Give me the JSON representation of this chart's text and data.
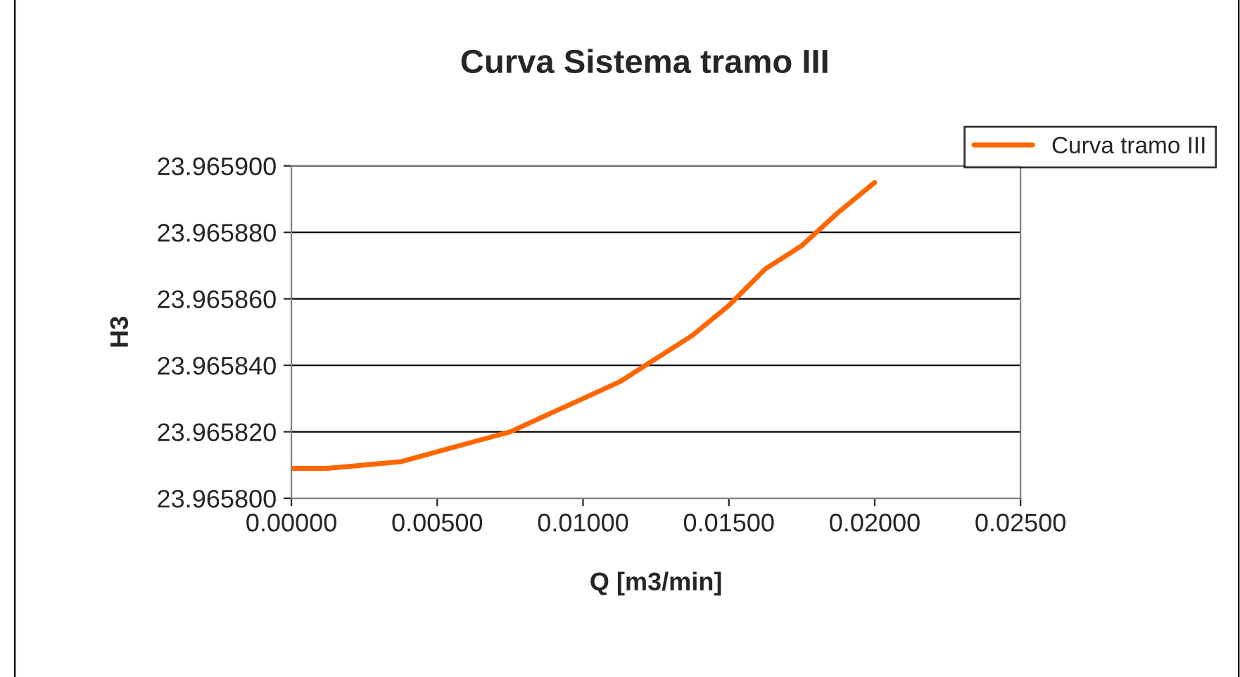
{
  "chart_data": {
    "type": "line",
    "title": "Curva Sistema tramo III",
    "xlabel": "Q [m3/min]",
    "ylabel": "H3",
    "x": [
      0,
      0.00125,
      0.0025,
      0.00375,
      0.005,
      0.00625,
      0.0075,
      0.00875,
      0.01,
      0.01125,
      0.0125,
      0.01375,
      0.015,
      0.01625,
      0.0175,
      0.01875,
      0.02
    ],
    "series": [
      {
        "name": "Curva tramo III",
        "color": "#ff6600",
        "values": [
          23.965809,
          23.965809,
          23.96581,
          23.965811,
          23.965814,
          23.965817,
          23.96582,
          23.965825,
          23.96583,
          23.965835,
          23.965842,
          23.965849,
          23.965858,
          23.965869,
          23.965876,
          23.965886,
          23.965895
        ]
      }
    ],
    "xlim": [
      0,
      0.025
    ],
    "xticks": [
      {
        "value": 0,
        "label": "0.00000"
      },
      {
        "value": 0.005,
        "label": "0.00500"
      },
      {
        "value": 0.01,
        "label": "0.01000"
      },
      {
        "value": 0.015,
        "label": "0.01500"
      },
      {
        "value": 0.02,
        "label": "0.02000"
      },
      {
        "value": 0.025,
        "label": "0.02500"
      }
    ],
    "ylim": [
      23.9658,
      23.9659
    ],
    "yticks": [
      {
        "value": 23.9658,
        "label": "23.965800"
      },
      {
        "value": 23.96582,
        "label": "23.965820"
      },
      {
        "value": 23.96584,
        "label": "23.965840"
      },
      {
        "value": 23.96586,
        "label": "23.965860"
      },
      {
        "value": 23.96588,
        "label": "23.965880"
      },
      {
        "value": 23.9659,
        "label": "23.965900"
      }
    ],
    "grid": "y",
    "legend": "top right",
    "marker": "none",
    "line_style": "solid"
  }
}
